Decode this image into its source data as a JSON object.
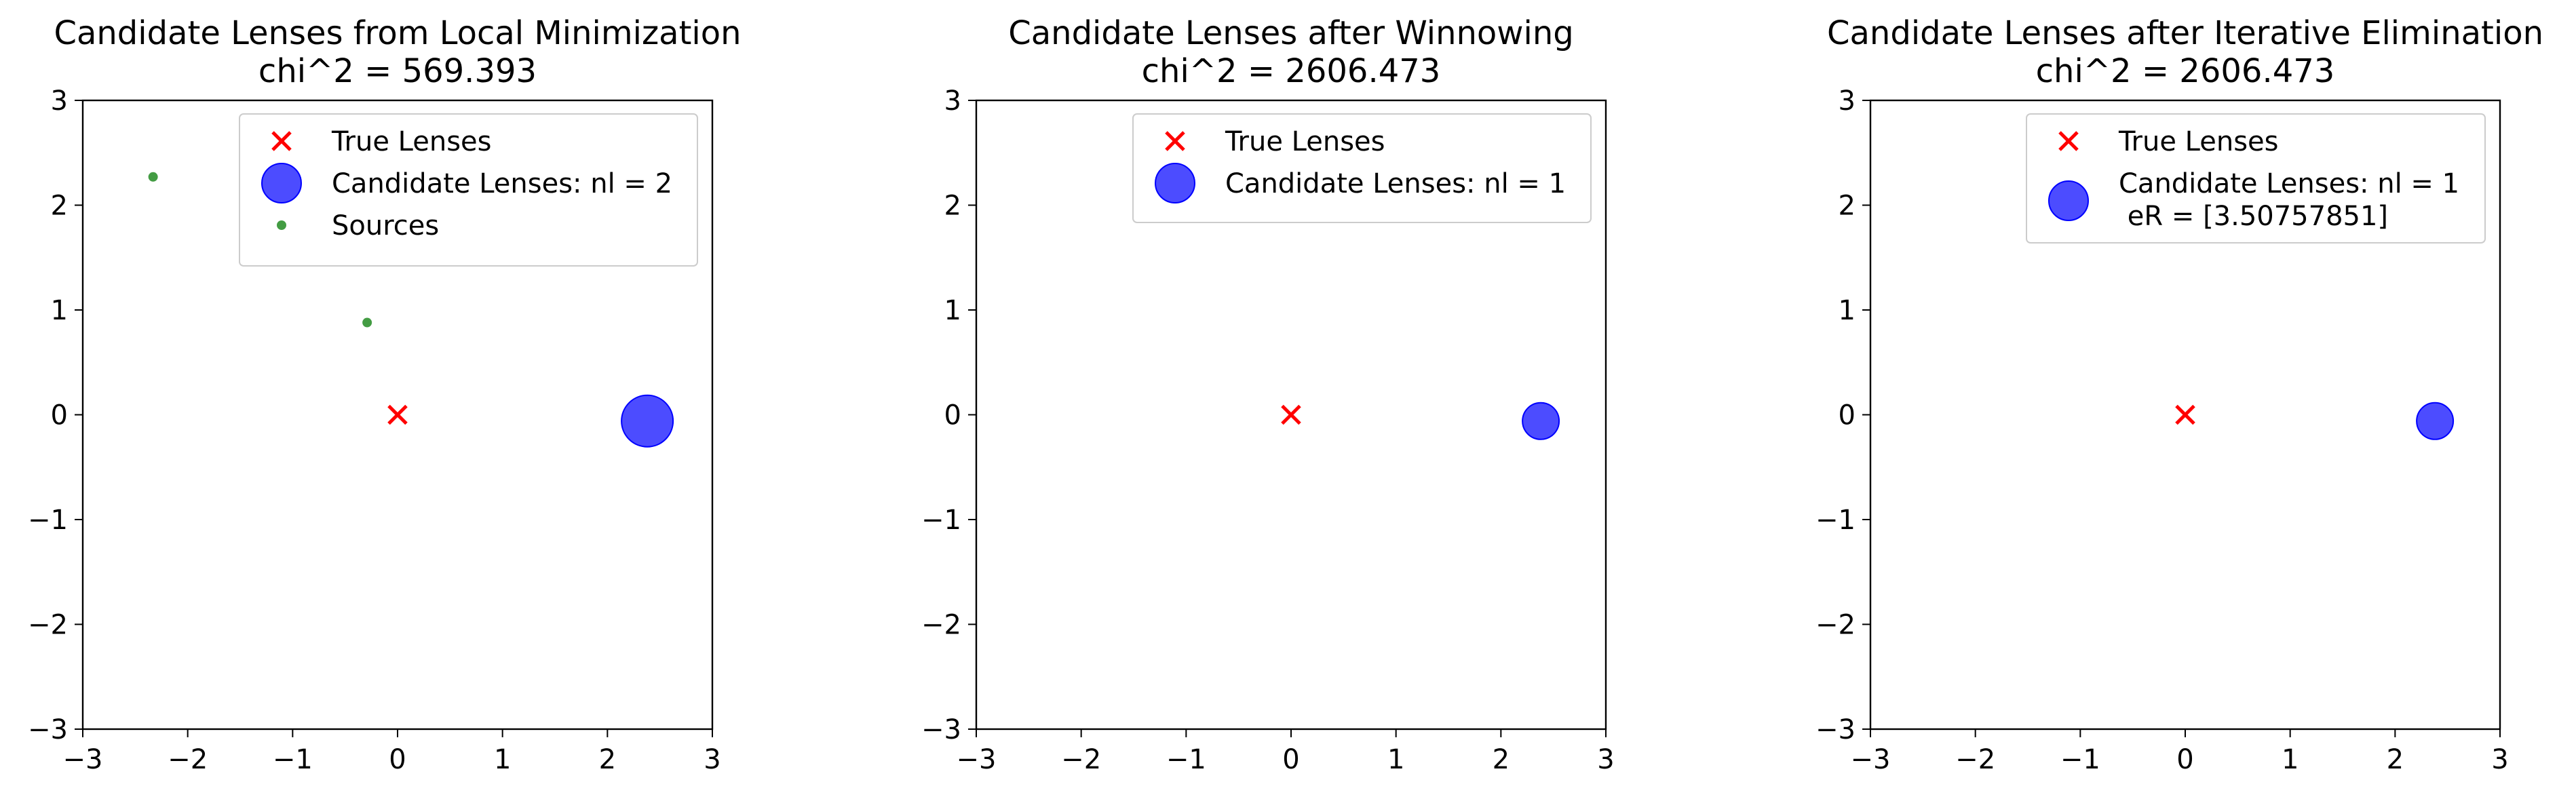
{
  "colors": {
    "true_lens": "#ff0000",
    "candidate": "#0000ff",
    "source": "#228b22",
    "legend_border": "#cccccc"
  },
  "chart_data": [
    {
      "type": "scatter",
      "title": "Candidate Lenses from Local Minimization",
      "subtitle": "chi^2 = 569.393",
      "xlim": [
        -3,
        3
      ],
      "ylim": [
        -3,
        3
      ],
      "xticks": [
        -3,
        -2,
        -1,
        0,
        1,
        2,
        3
      ],
      "yticks": [
        -3,
        -2,
        -1,
        0,
        1,
        2,
        3
      ],
      "grid": false,
      "legend_position": "top-right",
      "series": [
        {
          "name": "True Lenses",
          "marker": "x",
          "color": "#ff0000",
          "points": [
            [
              0,
              0
            ]
          ]
        },
        {
          "name": "Candidate Lenses: nl = 2",
          "marker": "circle",
          "color": "#0000ff",
          "alpha": 0.7,
          "points": [
            [
              2.38,
              -0.06
            ]
          ]
        },
        {
          "name": "Sources",
          "marker": "dot",
          "color": "#228b22",
          "points": [
            [
              -2.33,
              2.27
            ],
            [
              -0.29,
              0.88
            ]
          ]
        }
      ]
    },
    {
      "type": "scatter",
      "title": "Candidate Lenses after Winnowing",
      "subtitle": "chi^2 = 2606.473",
      "xlim": [
        -3,
        3
      ],
      "ylim": [
        -3,
        3
      ],
      "xticks": [
        -3,
        -2,
        -1,
        0,
        1,
        2,
        3
      ],
      "yticks": [
        -3,
        -2,
        -1,
        0,
        1,
        2,
        3
      ],
      "grid": false,
      "legend_position": "top-right",
      "series": [
        {
          "name": "True Lenses",
          "marker": "x",
          "color": "#ff0000",
          "points": [
            [
              0,
              0
            ]
          ]
        },
        {
          "name": "Candidate Lenses: nl = 1",
          "marker": "circle",
          "color": "#0000ff",
          "alpha": 0.7,
          "points": [
            [
              2.38,
              -0.06
            ]
          ]
        }
      ]
    },
    {
      "type": "scatter",
      "title": "Candidate Lenses after Iterative Elimination",
      "subtitle": "chi^2 = 2606.473",
      "xlim": [
        -3,
        3
      ],
      "ylim": [
        -3,
        3
      ],
      "xticks": [
        -3,
        -2,
        -1,
        0,
        1,
        2,
        3
      ],
      "yticks": [
        -3,
        -2,
        -1,
        0,
        1,
        2,
        3
      ],
      "grid": false,
      "legend_position": "top-right",
      "series": [
        {
          "name": "True Lenses",
          "marker": "x",
          "color": "#ff0000",
          "points": [
            [
              0,
              0
            ]
          ]
        },
        {
          "name": "Candidate Lenses: nl = 1\n eR = [3.50757851]",
          "marker": "circle",
          "color": "#0000ff",
          "alpha": 0.7,
          "points": [
            [
              2.38,
              -0.06
            ]
          ]
        }
      ]
    }
  ]
}
